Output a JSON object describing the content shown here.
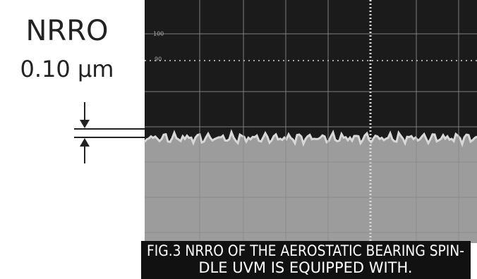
{
  "annotation": {
    "title": "NRRO",
    "value": "0.10 µm"
  },
  "scope": {
    "labels": [
      "100",
      "90"
    ]
  },
  "caption": {
    "lines": [
      "FIG.3 NRRO OF THE AEROSTATIC BEARING SPIN-",
      "DLE UVM IS EQUIPPED WITH."
    ]
  }
}
